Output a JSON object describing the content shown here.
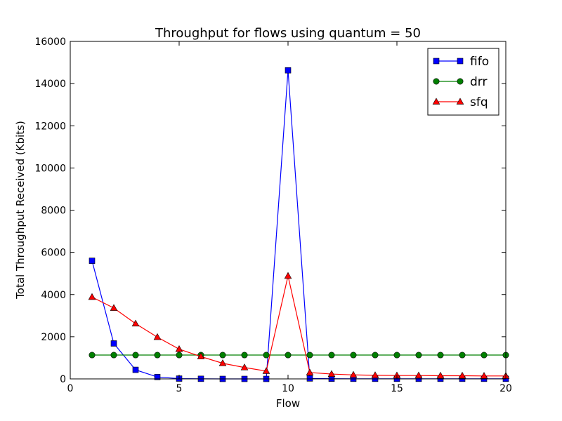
{
  "chart_data": {
    "type": "line",
    "title": "Throughput for flows using quantum = 50",
    "xlabel": "Flow",
    "ylabel": "Total Throughput Received (Kbits)",
    "xlim": [
      0,
      20
    ],
    "ylim": [
      0,
      16000
    ],
    "xticks": [
      0,
      5,
      10,
      15,
      20
    ],
    "yticks": [
      0,
      2000,
      4000,
      6000,
      8000,
      10000,
      12000,
      14000,
      16000
    ],
    "grid": false,
    "legend_position": "top-right",
    "x": [
      1,
      2,
      3,
      4,
      5,
      6,
      7,
      8,
      9,
      10,
      11,
      12,
      13,
      14,
      15,
      16,
      17,
      18,
      19,
      20
    ],
    "series": [
      {
        "name": "fifo",
        "color": "#0000ff",
        "marker": "square",
        "values": [
          5600,
          1680,
          430,
          90,
          15,
          5,
          0,
          0,
          0,
          14630,
          20,
          10,
          5,
          5,
          5,
          5,
          5,
          5,
          5,
          5
        ]
      },
      {
        "name": "drr",
        "color": "#008000",
        "marker": "circle",
        "values": [
          1130,
          1130,
          1130,
          1130,
          1130,
          1130,
          1130,
          1130,
          1130,
          1130,
          1130,
          1130,
          1130,
          1130,
          1130,
          1130,
          1130,
          1130,
          1130,
          1130
        ]
      },
      {
        "name": "sfq",
        "color": "#ff0000",
        "marker": "triangle",
        "values": [
          3880,
          3360,
          2620,
          1980,
          1410,
          1060,
          740,
          540,
          370,
          4880,
          300,
          230,
          190,
          170,
          160,
          160,
          150,
          150,
          140,
          140
        ]
      }
    ]
  }
}
